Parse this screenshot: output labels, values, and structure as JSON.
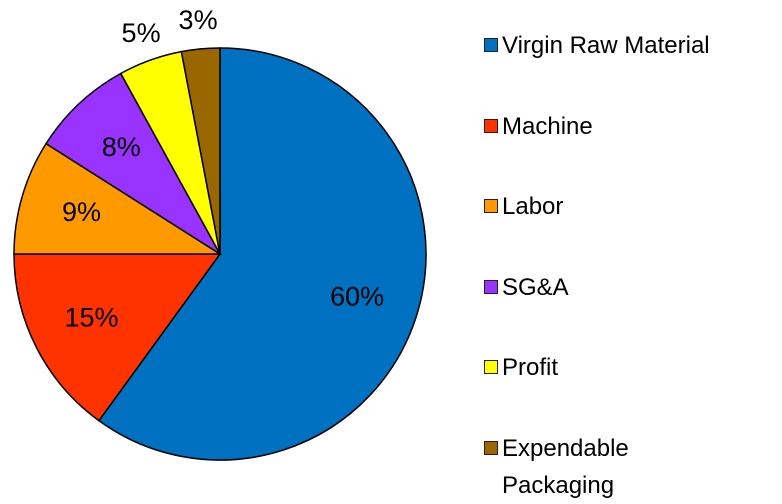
{
  "chart_data": {
    "type": "pie",
    "categories": [
      "Virgin Raw Material",
      "Machine",
      "Labor",
      "SG&A",
      "Profit",
      "Expendable Packaging"
    ],
    "values": [
      60,
      15,
      9,
      8,
      5,
      3
    ],
    "value_labels": [
      "60%",
      "15%",
      "9%",
      "8%",
      "5%",
      "3%"
    ],
    "colors": [
      "#0070c0",
      "#ff3300",
      "#ff9900",
      "#9933ff",
      "#ffff00",
      "#996600"
    ],
    "legend": "right"
  }
}
